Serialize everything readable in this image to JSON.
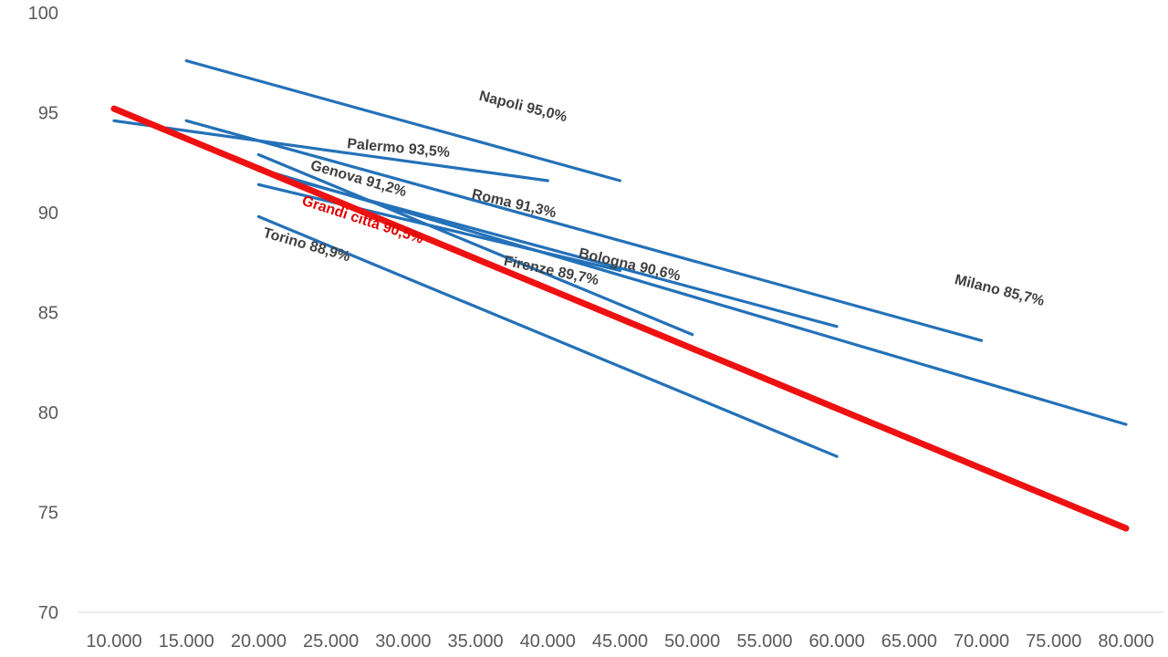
{
  "chart_data": {
    "type": "line",
    "title": "",
    "xlabel": "",
    "ylabel": "",
    "xlim": [
      10000,
      80000
    ],
    "ylim": [
      70,
      100
    ],
    "x_ticks": [
      "10.000",
      "15.000",
      "20.000",
      "25.000",
      "30.000",
      "35.000",
      "40.000",
      "45.000",
      "50.000",
      "55.000",
      "60.000",
      "65.000",
      "70.000",
      "75.000",
      "80.000"
    ],
    "y_ticks": [
      "70",
      "75",
      "80",
      "85",
      "90",
      "95",
      "100"
    ],
    "grid": false,
    "legend": "none",
    "colors": {
      "city": "#2471b8",
      "aggregate": "#ee1111"
    },
    "series": [
      {
        "label": "Napoli 95,0%",
        "color": "#2471b8",
        "points": [
          [
            15000,
            97.6
          ],
          [
            45000,
            91.6
          ]
        ]
      },
      {
        "label": "Palermo 93,5%",
        "color": "#2471b8",
        "points": [
          [
            10000,
            94.6
          ],
          [
            40000,
            91.6
          ]
        ]
      },
      {
        "label": "Roma 91,3%",
        "color": "#2471b8",
        "points": [
          [
            15000,
            94.6
          ],
          [
            70000,
            83.6
          ]
        ]
      },
      {
        "label": "Genova 91,2%",
        "color": "#2471b8",
        "points": [
          [
            20000,
            92.9
          ],
          [
            50000,
            83.9
          ]
        ]
      },
      {
        "label": "Bologna 90,6%",
        "color": "#2471b8",
        "points": [
          [
            20000,
            92.1
          ],
          [
            60000,
            84.3
          ]
        ]
      },
      {
        "label": "Firenze 89,7%",
        "color": "#2471b8",
        "points": [
          [
            20000,
            91.4
          ],
          [
            45000,
            87.1
          ]
        ]
      },
      {
        "label": "Milano 85,7%",
        "color": "#2471b8",
        "points": [
          [
            20000,
            92.2
          ],
          [
            80000,
            79.4
          ]
        ]
      },
      {
        "label": "Torino 88,9%",
        "color": "#2471b8",
        "points": [
          [
            20000,
            89.8
          ],
          [
            60000,
            77.8
          ]
        ]
      },
      {
        "label": "Grandi città 90,5%",
        "color": "#ee1111",
        "highlight": true,
        "points": [
          [
            10000,
            95.2
          ],
          [
            80000,
            74.2
          ]
        ]
      }
    ]
  }
}
